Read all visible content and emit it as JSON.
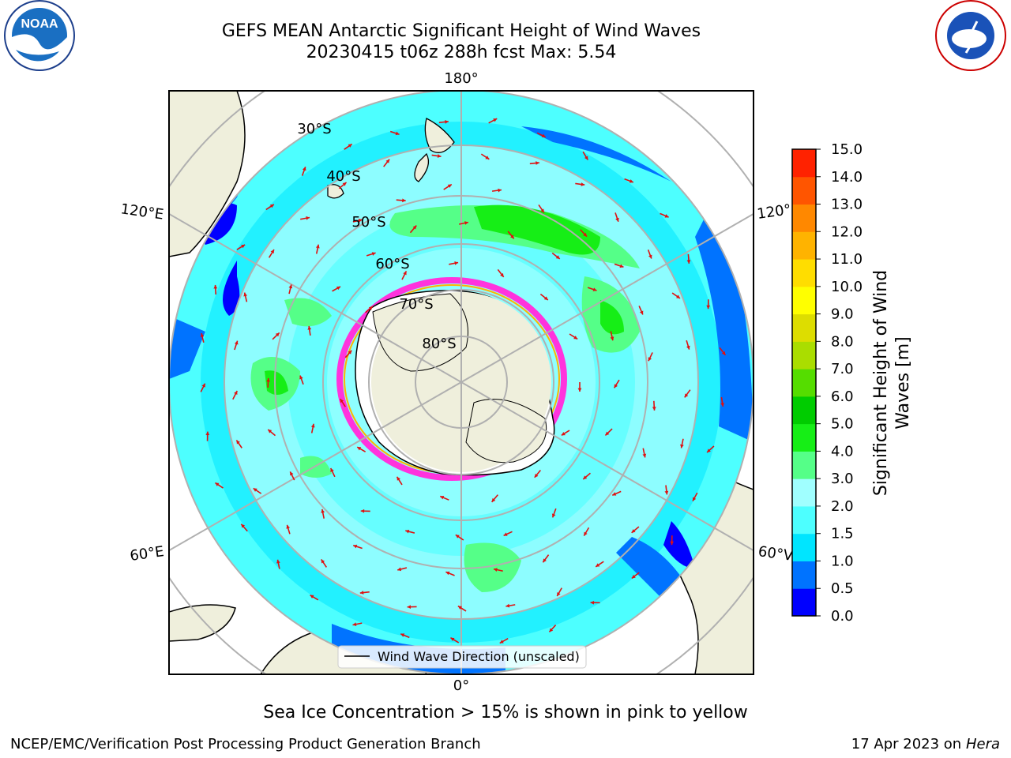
{
  "title": {
    "line1": "GEFS MEAN Antarctic Significant Height of Wind Waves",
    "line2": "20230415 t06z 288h fcst   Max: 5.54"
  },
  "map": {
    "projection": "south-polar-stereographic",
    "lon_labels": [
      "180°",
      "120°E",
      "120°",
      "60°E",
      "60°V",
      "0°"
    ],
    "lat_labels": [
      "30°S",
      "40°S",
      "50°S",
      "60°S",
      "70°S",
      "80°S"
    ],
    "legend_text": "Wind Wave Direction (unscaled)"
  },
  "colorbar": {
    "title": "Significant Height of Wind Waves [m]",
    "ticks": [
      "0.0",
      "0.5",
      "1.0",
      "1.5",
      "2.0",
      "3.0",
      "4.0",
      "5.0",
      "6.0",
      "7.0",
      "8.0",
      "9.0",
      "10.0",
      "11.0",
      "12.0",
      "13.0",
      "14.0",
      "15.0"
    ],
    "colors": [
      "#0000ff",
      "#0073ff",
      "#00e5ff",
      "#4dffff",
      "#a0ffff",
      "#55ff88",
      "#16ee16",
      "#00cc00",
      "#55dd00",
      "#aadd00",
      "#dddd00",
      "#ffff00",
      "#ffdd00",
      "#ffb300",
      "#ff8800",
      "#ff5500",
      "#ff2200"
    ]
  },
  "caption": "Sea Ice Concentration > 15% is shown in pink to yellow",
  "footer": {
    "left": "NCEP/EMC/Verification Post Processing Product Generation Branch",
    "right_date": "17 Apr 2023 on ",
    "right_host": "Hera"
  },
  "logos": {
    "left": "NOAA",
    "right": "NATIONAL WEATHER SERVICE"
  }
}
